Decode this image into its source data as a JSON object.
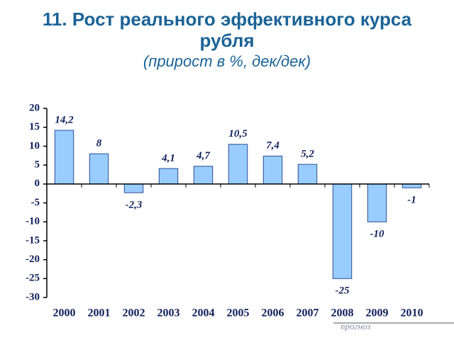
{
  "chart_data": {
    "type": "bar",
    "title": "11. Рост реального эффективного курса рубля",
    "subtitle": "(прирост в %, дек/дек)",
    "categories": [
      "2000",
      "2001",
      "2002",
      "2003",
      "2004",
      "2005",
      "2006",
      "2007",
      "2008",
      "2009",
      "2010"
    ],
    "values": [
      14.2,
      8,
      -2.3,
      4.1,
      4.7,
      10.5,
      7.4,
      5.2,
      -25,
      -10,
      -1
    ],
    "value_labels": [
      "14,2",
      "8",
      "-2,3",
      "4,1",
      "4,7",
      "10,5",
      "7,4",
      "5,2",
      "-25",
      "-10",
      "-1"
    ],
    "color": "#99ccff",
    "ylim": [
      -30,
      20
    ],
    "yticks": [
      -30,
      -25,
      -20,
      -15,
      -10,
      -5,
      0,
      5,
      10,
      15,
      20
    ],
    "grid": false,
    "annotation": "прогноз"
  }
}
